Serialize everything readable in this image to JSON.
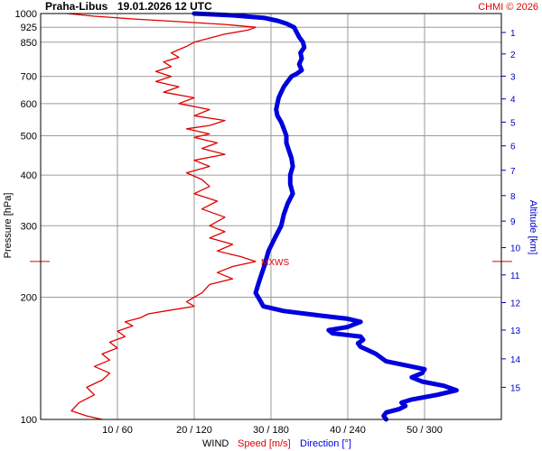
{
  "header": {
    "station": "Praha-Libus",
    "datetime": "19.01.2026 12 UTC",
    "credit": "CHMI © 2026"
  },
  "chart_data": {
    "type": "line",
    "pressure_axis": {
      "label": "Pressure [hPa]",
      "scale": "log",
      "range": [
        1000,
        100
      ],
      "ticks": [
        100,
        200,
        300,
        400,
        500,
        600,
        700,
        850,
        925,
        1000
      ]
    },
    "altitude_axis": {
      "label": "Altitude [km]",
      "ticks": [
        1,
        2,
        3,
        4,
        5,
        6,
        7,
        8,
        9,
        10,
        11,
        12,
        13,
        14,
        15
      ],
      "tick_pressures": [
        898,
        795,
        701,
        616,
        540,
        472,
        411,
        356,
        308,
        265,
        227,
        194,
        166,
        141,
        120
      ]
    },
    "wind_axis": {
      "label_prefix": "WIND",
      "speed_label": "Speed [m/s]",
      "direction_label": "Direction [°]",
      "speed_range": [
        0,
        60
      ],
      "direction_range": [
        0,
        360
      ],
      "ticks": [
        {
          "speed": 10,
          "dir": 60,
          "label": "10 / 60"
        },
        {
          "speed": 20,
          "dir": 120,
          "label": "20 / 120"
        },
        {
          "speed": 30,
          "dir": 180,
          "label": "30 / 180"
        },
        {
          "speed": 40,
          "dir": 240,
          "label": "40 / 240"
        },
        {
          "speed": 50,
          "dir": 300,
          "label": "50 / 300"
        }
      ]
    },
    "annotation": {
      "text": "MXWS",
      "pressure": 245,
      "speed": 28
    },
    "series": [
      {
        "name": "Speed [m/s]",
        "color": "#e00000",
        "points": [
          [
            1000,
            3.5
          ],
          [
            985,
            7
          ],
          [
            970,
            12
          ],
          [
            955,
            18
          ],
          [
            940,
            24
          ],
          [
            925,
            28
          ],
          [
            910,
            27
          ],
          [
            890,
            24
          ],
          [
            870,
            22
          ],
          [
            850,
            20
          ],
          [
            830,
            19
          ],
          [
            800,
            17
          ],
          [
            780,
            18
          ],
          [
            760,
            16
          ],
          [
            740,
            17
          ],
          [
            720,
            15
          ],
          [
            700,
            17
          ],
          [
            680,
            15
          ],
          [
            660,
            18
          ],
          [
            640,
            16
          ],
          [
            620,
            20
          ],
          [
            600,
            18
          ],
          [
            580,
            22
          ],
          [
            560,
            20
          ],
          [
            545,
            24
          ],
          [
            530,
            22
          ],
          [
            520,
            19
          ],
          [
            505,
            22
          ],
          [
            495,
            20
          ],
          [
            480,
            23
          ],
          [
            465,
            21
          ],
          [
            450,
            24
          ],
          [
            435,
            20
          ],
          [
            420,
            22
          ],
          [
            405,
            19
          ],
          [
            390,
            21
          ],
          [
            375,
            22
          ],
          [
            360,
            20
          ],
          [
            345,
            23
          ],
          [
            330,
            21
          ],
          [
            315,
            24
          ],
          [
            300,
            22
          ],
          [
            290,
            24
          ],
          [
            280,
            22
          ],
          [
            270,
            25
          ],
          [
            260,
            23
          ],
          [
            252,
            26
          ],
          [
            245,
            28
          ],
          [
            238,
            25
          ],
          [
            230,
            23
          ],
          [
            222,
            25
          ],
          [
            215,
            22
          ],
          [
            205,
            21
          ],
          [
            200,
            20
          ],
          [
            195,
            19
          ],
          [
            190,
            20
          ],
          [
            186,
            17
          ],
          [
            182,
            14
          ],
          [
            178,
            13
          ],
          [
            174,
            11
          ],
          [
            170,
            12
          ],
          [
            165,
            10
          ],
          [
            160,
            11
          ],
          [
            155,
            9
          ],
          [
            150,
            10
          ],
          [
            145,
            8
          ],
          [
            140,
            9
          ],
          [
            135,
            7
          ],
          [
            130,
            9
          ],
          [
            125,
            8
          ],
          [
            120,
            6
          ],
          [
            115,
            7
          ],
          [
            110,
            5
          ],
          [
            105,
            4
          ],
          [
            102,
            6
          ],
          [
            100,
            8
          ]
        ]
      },
      {
        "name": "Direction [°]",
        "color": "#0000dd",
        "points": [
          [
            1000,
            120
          ],
          [
            990,
            150
          ],
          [
            975,
            175
          ],
          [
            960,
            185
          ],
          [
            945,
            192
          ],
          [
            925,
            198
          ],
          [
            900,
            200
          ],
          [
            875,
            202
          ],
          [
            850,
            205
          ],
          [
            825,
            206
          ],
          [
            800,
            203
          ],
          [
            775,
            204
          ],
          [
            750,
            202
          ],
          [
            725,
            204
          ],
          [
            710,
            200
          ],
          [
            700,
            196
          ],
          [
            680,
            193
          ],
          [
            660,
            190
          ],
          [
            640,
            188
          ],
          [
            620,
            186
          ],
          [
            600,
            185
          ],
          [
            580,
            184
          ],
          [
            560,
            185
          ],
          [
            540,
            188
          ],
          [
            520,
            190
          ],
          [
            500,
            192
          ],
          [
            480,
            192
          ],
          [
            460,
            194
          ],
          [
            440,
            196
          ],
          [
            420,
            197
          ],
          [
            400,
            195
          ],
          [
            380,
            195
          ],
          [
            360,
            197
          ],
          [
            340,
            193
          ],
          [
            320,
            190
          ],
          [
            300,
            188
          ],
          [
            280,
            183
          ],
          [
            260,
            178
          ],
          [
            240,
            175
          ],
          [
            225,
            172
          ],
          [
            215,
            170
          ],
          [
            205,
            168
          ],
          [
            200,
            170
          ],
          [
            195,
            172
          ],
          [
            190,
            174
          ],
          [
            185,
            190
          ],
          [
            180,
            220
          ],
          [
            177,
            240
          ],
          [
            174,
            250
          ],
          [
            172,
            246
          ],
          [
            169,
            240
          ],
          [
            166,
            225
          ],
          [
            163,
            228
          ],
          [
            160,
            250
          ],
          [
            157,
            252
          ],
          [
            154,
            248
          ],
          [
            151,
            250
          ],
          [
            148,
            256
          ],
          [
            145,
            262
          ],
          [
            142,
            266
          ],
          [
            139,
            270
          ],
          [
            136,
            285
          ],
          [
            133,
            300
          ],
          [
            130,
            298
          ],
          [
            127,
            290
          ],
          [
            124,
            298
          ],
          [
            121,
            315
          ],
          [
            118,
            325
          ],
          [
            115,
            310
          ],
          [
            112,
            290
          ],
          [
            110,
            282
          ],
          [
            108,
            285
          ],
          [
            106,
            280
          ],
          [
            104,
            270
          ],
          [
            102,
            268
          ],
          [
            100,
            270
          ]
        ]
      }
    ]
  }
}
